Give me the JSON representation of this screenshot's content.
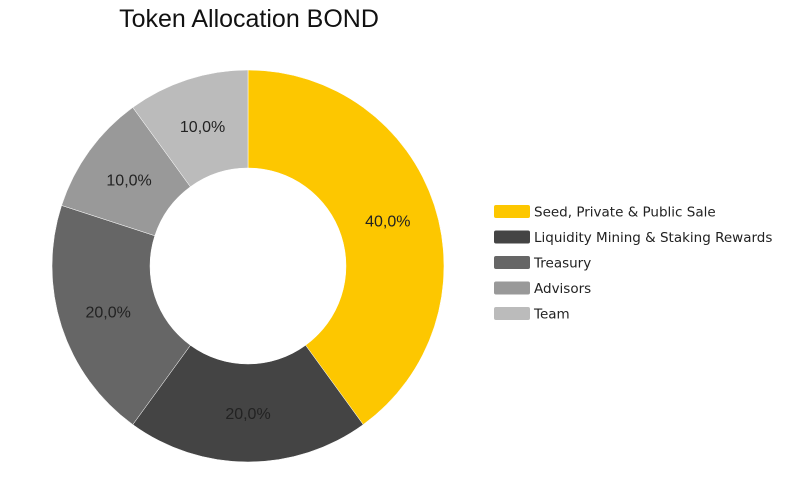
{
  "chart_data": {
    "type": "pie",
    "title": "Token Allocation BOND",
    "donut": true,
    "categories": [
      "Seed, Private & Public Sale",
      "Liquidity Mining & Staking Rewards",
      "Treasury",
      "Advisors",
      "Team"
    ],
    "values": [
      40.0,
      20.0,
      20.0,
      10.0,
      10.0
    ],
    "data_labels": [
      "40,0%",
      "20,0%",
      "20,0%",
      "10,0%",
      "10,0%"
    ],
    "colors": [
      "#fdc700",
      "#444444",
      "#666666",
      "#999999",
      "#bbbbbb"
    ],
    "legend_position": "right",
    "start_angle": "12 o'clock",
    "direction": "clockwise"
  }
}
